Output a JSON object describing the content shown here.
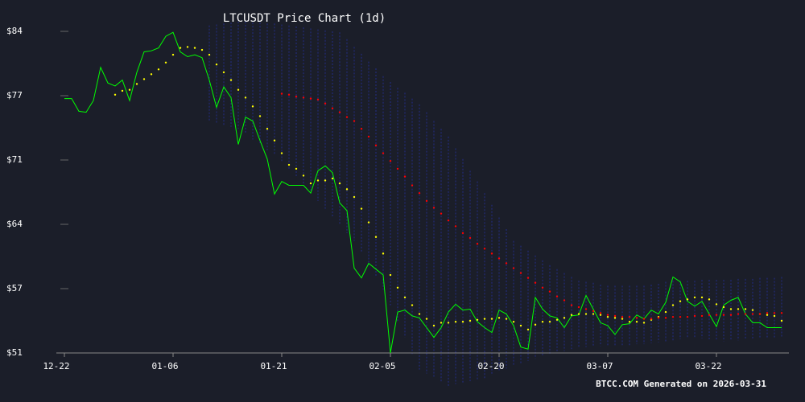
{
  "chart_data": {
    "type": "line",
    "title": "LTCUSDT Price Chart (1d)",
    "footer": "BTCC.COM Generated on 2026-03-31",
    "background": "#1b1e29",
    "x": [
      "12-22",
      "12-23",
      "12-24",
      "12-25",
      "12-26",
      "12-27",
      "12-28",
      "12-29",
      "12-30",
      "12-31",
      "01-01",
      "01-02",
      "01-03",
      "01-04",
      "01-05",
      "01-06",
      "01-07",
      "01-08",
      "01-09",
      "01-10",
      "01-11",
      "01-12",
      "01-13",
      "01-14",
      "01-15",
      "01-16",
      "01-17",
      "01-18",
      "01-19",
      "01-20",
      "01-21",
      "01-22",
      "01-23",
      "01-24",
      "01-25",
      "01-26",
      "01-27",
      "01-28",
      "01-29",
      "01-30",
      "01-31",
      "02-01",
      "02-02",
      "02-03",
      "02-04",
      "02-05",
      "02-06",
      "02-07",
      "02-08",
      "02-09",
      "02-10",
      "02-11",
      "02-12",
      "02-13",
      "02-14",
      "02-15",
      "02-16",
      "02-17",
      "02-18",
      "02-19",
      "02-20",
      "02-21",
      "02-22",
      "02-23",
      "02-24",
      "02-25",
      "02-26",
      "02-27",
      "02-28",
      "03-01",
      "03-02",
      "03-03",
      "03-04",
      "03-05",
      "03-06",
      "03-07",
      "03-08",
      "03-09",
      "03-10",
      "03-11",
      "03-12",
      "03-13",
      "03-14",
      "03-15",
      "03-16",
      "03-17",
      "03-18",
      "03-19",
      "03-20",
      "03-21",
      "03-22",
      "03-23",
      "03-24",
      "03-25",
      "03-26",
      "03-27",
      "03-28",
      "03-29",
      "03-30",
      "03-31"
    ],
    "xticks": [
      "12-22",
      "01-06",
      "01-21",
      "02-05",
      "02-20",
      "03-07",
      "03-22"
    ],
    "ylim": [
      50.8,
      83.8
    ],
    "yticks": [
      {
        "value": 50.8,
        "label": "$51"
      },
      {
        "value": 57.4,
        "label": "$57"
      },
      {
        "value": 64.0,
        "label": "$64"
      },
      {
        "value": 70.6,
        "label": "$71"
      },
      {
        "value": 77.2,
        "label": "$77"
      },
      {
        "value": 83.8,
        "label": "$84"
      }
    ],
    "band": {
      "color": "#232c86",
      "upper": [
        null,
        null,
        null,
        null,
        null,
        null,
        null,
        null,
        null,
        null,
        null,
        null,
        null,
        null,
        null,
        null,
        null,
        null,
        null,
        null,
        84.4,
        84.5,
        84.6,
        84.7,
        84.8,
        84.8,
        84.7,
        84.7,
        84.6,
        84.6,
        84.5,
        84.4,
        84.3,
        84.2,
        84.1,
        84.0,
        83.9,
        83.8,
        83.7,
        83.0,
        82.2,
        81.5,
        80.7,
        80.0,
        79.2,
        78.6,
        78.0,
        77.5,
        76.9,
        76.3,
        75.5,
        74.6,
        73.8,
        73.0,
        71.8,
        70.7,
        69.5,
        68.4,
        67.2,
        66.0,
        64.7,
        63.5,
        62.3,
        61.8,
        61.3,
        60.8,
        60.3,
        59.8,
        59.4,
        59.0,
        58.6,
        58.2,
        58.1,
        58.0,
        57.8,
        57.7,
        57.7,
        57.7,
        57.7,
        57.7,
        57.7,
        57.8,
        57.9,
        58.1,
        58.2,
        58.2,
        58.2,
        58.2,
        58.3,
        58.3,
        58.3,
        58.3,
        58.3,
        58.4,
        58.4,
        58.4,
        58.5,
        58.5,
        58.5,
        58.6
      ],
      "lower": [
        null,
        null,
        null,
        null,
        null,
        null,
        null,
        null,
        null,
        null,
        null,
        null,
        null,
        null,
        null,
        null,
        null,
        null,
        null,
        null,
        74.6,
        74.4,
        74.2,
        74.0,
        73.8,
        73.3,
        72.7,
        72.2,
        71.6,
        71.1,
        70.5,
        69.7,
        68.9,
        68.0,
        67.2,
        66.4,
        65.6,
        64.8,
        64.0,
        63.1,
        62.3,
        61.1,
        59.8,
        58.6,
        57.3,
        55.7,
        54.0,
        52.4,
        50.7,
        49.1,
        48.7,
        48.2,
        47.8,
        47.4,
        47.6,
        47.7,
        47.9,
        48.0,
        48.2,
        48.5,
        48.9,
        49.2,
        49.5,
        49.7,
        50.0,
        50.2,
        50.5,
        50.7,
        50.9,
        51.0,
        51.2,
        51.4,
        51.4,
        51.4,
        51.5,
        51.5,
        51.5,
        51.6,
        51.6,
        51.7,
        51.7,
        51.8,
        51.9,
        52.0,
        52.1,
        52.2,
        52.3,
        52.4,
        52.3,
        52.2,
        52.1,
        52.0,
        52.1,
        52.1,
        52.2,
        52.2,
        52.3,
        52.3,
        52.4,
        52.4
      ]
    },
    "series": [
      {
        "color": "#00ff00",
        "style": "line",
        "values": [
          76.9,
          76.9,
          75.6,
          75.5,
          76.7,
          80.1,
          78.5,
          78.2,
          78.8,
          76.7,
          79.6,
          81.7,
          81.8,
          82.1,
          83.3,
          83.7,
          81.7,
          81.2,
          81.4,
          81.1,
          78.8,
          76.0,
          78.1,
          77.0,
          72.2,
          75.0,
          74.6,
          72.6,
          70.7,
          67.1,
          68.4,
          68.0,
          68.0,
          68.0,
          67.2,
          69.5,
          70.0,
          69.3,
          66.2,
          65.4,
          59.5,
          58.5,
          60.0,
          59.4,
          58.8,
          50.8,
          55.0,
          55.2,
          54.6,
          54.4,
          53.4,
          52.4,
          53.4,
          55.0,
          55.8,
          55.2,
          55.3,
          54.0,
          53.4,
          52.9,
          55.2,
          54.8,
          53.6,
          51.4,
          51.2,
          56.5,
          55.3,
          54.6,
          54.4,
          53.4,
          54.6,
          54.7,
          56.7,
          55.3,
          53.9,
          53.6,
          52.7,
          53.7,
          53.8,
          54.7,
          54.3,
          55.2,
          54.8,
          56.0,
          58.6,
          58.1,
          56.1,
          55.6,
          56.1,
          54.8,
          53.5,
          55.7,
          56.2,
          56.5,
          54.8,
          53.9,
          53.9,
          53.4,
          53.4,
          53.4
        ]
      },
      {
        "color": "#ffff00",
        "style": "dots",
        "values": [
          null,
          null,
          null,
          null,
          null,
          null,
          null,
          77.3,
          77.7,
          77.8,
          78.4,
          78.9,
          79.4,
          79.9,
          80.6,
          81.4,
          82.1,
          82.2,
          82.1,
          81.9,
          81.4,
          80.4,
          79.6,
          78.8,
          77.8,
          77.0,
          76.1,
          75.1,
          73.8,
          72.6,
          71.3,
          70.1,
          69.7,
          69.0,
          68.2,
          68.5,
          68.5,
          68.7,
          68.2,
          67.6,
          66.8,
          65.6,
          64.2,
          62.7,
          61.0,
          58.8,
          57.5,
          56.5,
          55.7,
          54.8,
          54.3,
          53.6,
          53.9,
          53.9,
          54.0,
          54.0,
          54.1,
          54.2,
          54.3,
          54.3,
          54.4,
          54.3,
          54.0,
          53.6,
          53.2,
          53.7,
          54.0,
          54.0,
          54.2,
          54.4,
          54.7,
          54.8,
          54.8,
          54.8,
          54.7,
          54.5,
          54.4,
          54.3,
          54.0,
          54.0,
          53.9,
          54.2,
          54.5,
          55.0,
          55.7,
          56.1,
          56.3,
          56.5,
          56.5,
          56.3,
          55.8,
          55.5,
          55.3,
          55.3,
          55.3,
          55.2,
          54.8,
          54.7,
          54.6,
          54.1
        ]
      },
      {
        "color": "#ff0000",
        "style": "dots",
        "values": [
          null,
          null,
          null,
          null,
          null,
          null,
          null,
          null,
          null,
          null,
          null,
          null,
          null,
          null,
          null,
          null,
          null,
          null,
          null,
          null,
          null,
          null,
          null,
          null,
          null,
          null,
          null,
          null,
          null,
          null,
          77.4,
          77.3,
          77.1,
          77.0,
          76.9,
          76.8,
          76.4,
          75.9,
          75.5,
          75.0,
          74.6,
          73.8,
          73.0,
          72.1,
          71.3,
          70.5,
          69.7,
          68.9,
          68.0,
          67.2,
          66.4,
          65.7,
          65.1,
          64.4,
          63.8,
          63.1,
          62.6,
          62.0,
          61.5,
          61.0,
          60.5,
          60.0,
          59.5,
          59.0,
          58.5,
          58.0,
          57.5,
          57.1,
          56.6,
          56.2,
          55.7,
          55.5,
          55.3,
          55.1,
          54.9,
          54.7,
          54.6,
          54.5,
          54.5,
          54.4,
          54.3,
          54.3,
          54.4,
          54.4,
          54.5,
          54.5,
          54.5,
          54.6,
          54.6,
          54.7,
          54.7,
          54.7,
          54.7,
          54.8,
          54.8,
          54.8,
          54.8,
          54.9,
          54.9,
          54.9
        ]
      }
    ]
  }
}
